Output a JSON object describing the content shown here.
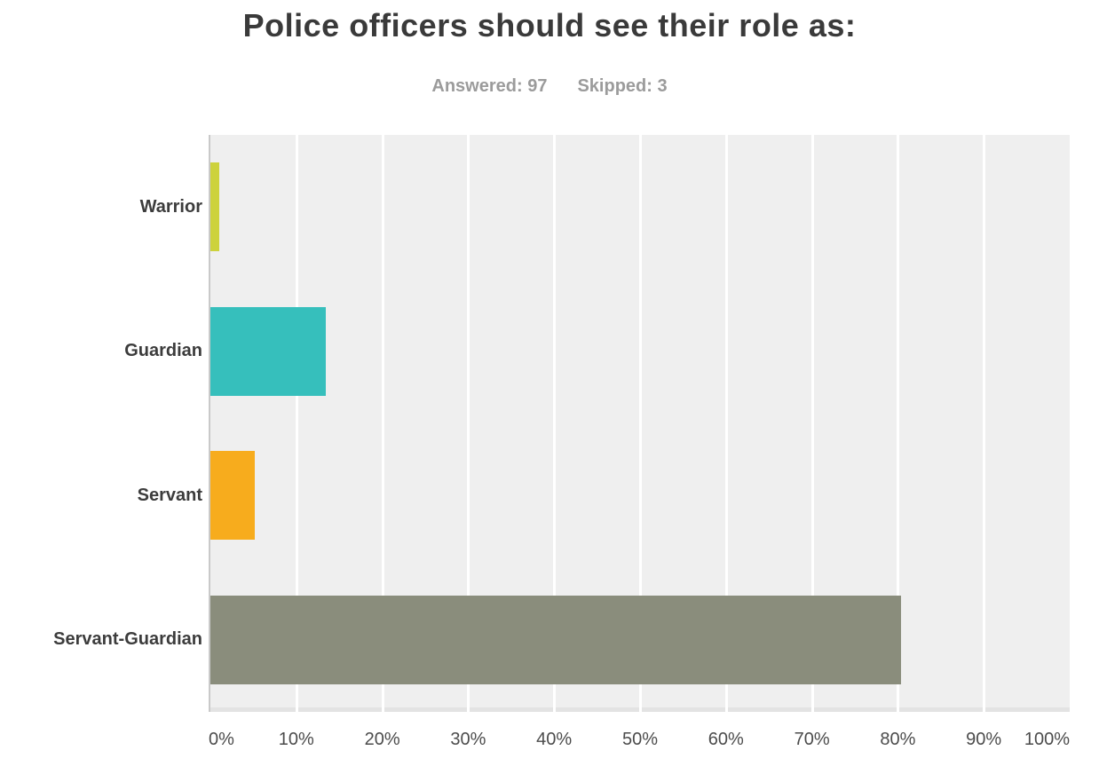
{
  "header": {
    "title": "Police officers should see their role as:",
    "answered_label": "Answered: 97",
    "skipped_label": "Skipped: 3"
  },
  "chart_data": {
    "type": "bar",
    "orientation": "horizontal",
    "title": "Police officers should see their role as:",
    "answered": 97,
    "skipped": 3,
    "categories": [
      "Warrior",
      "Guardian",
      "Servant",
      "Servant-Guardian"
    ],
    "values": [
      1.03,
      13.4,
      5.15,
      80.41
    ],
    "value_unit": "percent",
    "bar_colors": [
      "#cdd23c",
      "#36bfbc",
      "#f7ac1d",
      "#8a8d7c"
    ],
    "xlim": [
      0,
      100
    ],
    "x_ticks": [
      "0%",
      "10%",
      "20%",
      "30%",
      "40%",
      "50%",
      "60%",
      "70%",
      "80%",
      "90%",
      "100%"
    ],
    "grid": true,
    "legend": "none",
    "colors": {
      "plot_background": "#efefef",
      "gridline": "#ffffff",
      "axis_line": "#c9c9c9",
      "bottom_strip": "#e3e3e3",
      "title_text": "#3a3a3a",
      "subtitle_text": "#9b9b9b",
      "category_text": "#3c3c3c",
      "tick_text": "#4c4c4c"
    }
  }
}
